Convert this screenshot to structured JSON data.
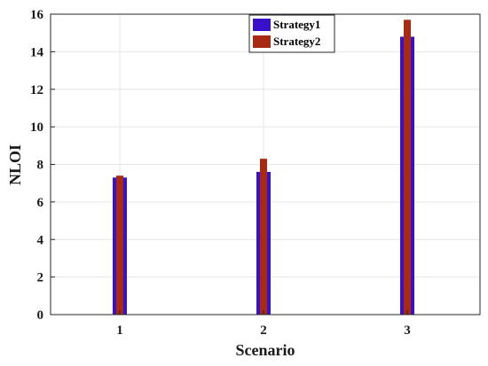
{
  "chart_data": {
    "type": "bar",
    "categories": [
      "1",
      "2",
      "3"
    ],
    "series": [
      {
        "name": "Strategy1",
        "values": [
          7.3,
          7.6,
          14.8
        ],
        "color": "#3a10c8"
      },
      {
        "name": "Strategy2",
        "values": [
          7.4,
          8.3,
          15.7
        ],
        "color": "#a82a12"
      }
    ],
    "xlabel": "Scenario",
    "ylabel": "NLOI",
    "ylim": [
      0,
      16
    ],
    "yticks": [
      0,
      2,
      4,
      6,
      8,
      10,
      12,
      14,
      16
    ],
    "grid": true,
    "legend_position": "top-center"
  }
}
